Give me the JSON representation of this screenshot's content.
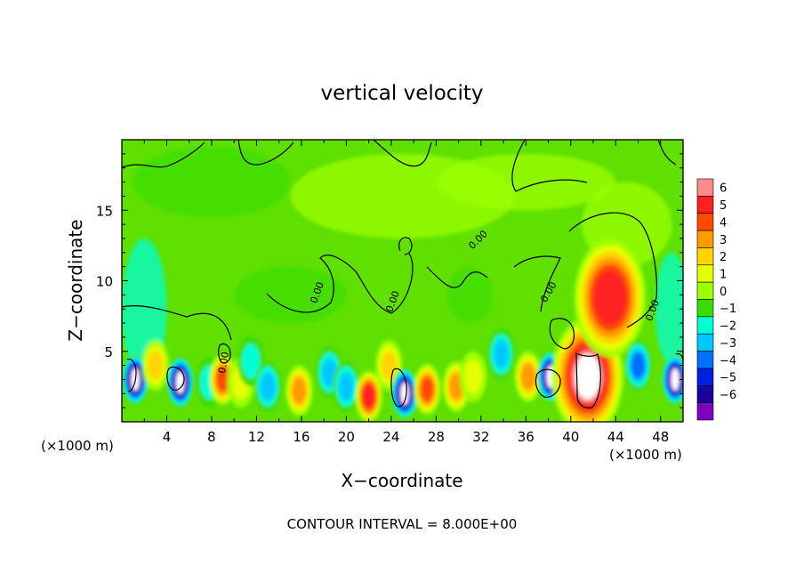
{
  "chart_data": {
    "type": "heatmap",
    "title": "vertical velocity",
    "xlabel": "X−coordinate",
    "ylabel": "Z−coordinate",
    "x_unit_left": "(×1000 m)",
    "x_unit_right": "(×1000 m)",
    "footer": "CONTOUR INTERVAL = 8.000E+00",
    "contour_label": "0.00",
    "xlim": [
      0,
      50
    ],
    "ylim": [
      0,
      20
    ],
    "x_ticks": [
      4,
      8,
      12,
      16,
      20,
      24,
      28,
      32,
      36,
      40,
      44,
      48
    ],
    "y_ticks": [
      5,
      10,
      15
    ],
    "colorbar": {
      "levels": [
        6,
        5,
        4,
        3,
        2,
        1,
        0,
        -1,
        -2,
        -3,
        -4,
        -5,
        -6
      ],
      "colors": [
        "#ff8a8a",
        "#ff2020",
        "#ff4a00",
        "#ff9a00",
        "#ffd400",
        "#e6ff00",
        "#9cff00",
        "#3ddc00",
        "#00ffd5",
        "#00c8ff",
        "#0070ff",
        "#0020e0",
        "#1a00a0",
        "#8000c0"
      ]
    },
    "features": [
      {
        "x": 1.2,
        "z": 3.0,
        "w": -6.5
      },
      {
        "x": 3.0,
        "z": 4.0,
        "w": 3.0
      },
      {
        "x": 5.2,
        "z": 2.8,
        "w": -6.5
      },
      {
        "x": 7.8,
        "z": 2.8,
        "w": -1.5
      },
      {
        "x": 9.0,
        "z": 3.0,
        "w": 5.0
      },
      {
        "x": 10.6,
        "z": 2.8,
        "w": 2.0
      },
      {
        "x": 11.5,
        "z": 4.3,
        "w": -2.0
      },
      {
        "x": 13.0,
        "z": 2.5,
        "w": -2.5
      },
      {
        "x": 15.8,
        "z": 2.2,
        "w": 4.0
      },
      {
        "x": 18.5,
        "z": 3.5,
        "w": -3.0
      },
      {
        "x": 20.0,
        "z": 2.5,
        "w": -3.0
      },
      {
        "x": 22.0,
        "z": 1.8,
        "w": 5.5
      },
      {
        "x": 23.8,
        "z": 4.0,
        "w": 3.0
      },
      {
        "x": 25.2,
        "z": 2.0,
        "w": -6.5
      },
      {
        "x": 27.2,
        "z": 2.3,
        "w": 5.0
      },
      {
        "x": 29.8,
        "z": 2.5,
        "w": 3.5
      },
      {
        "x": 31.3,
        "z": 3.2,
        "w": 2.0
      },
      {
        "x": 33.8,
        "z": 4.8,
        "w": -2.5
      },
      {
        "x": 36.2,
        "z": 3.2,
        "w": 4.0
      },
      {
        "x": 38.2,
        "z": 3.2,
        "w": -6.5
      },
      {
        "x": 39.5,
        "z": 2.8,
        "w": 3.0
      },
      {
        "x": 41.5,
        "z": 3.2,
        "w": 6.8
      },
      {
        "x": 43.5,
        "z": 8.8,
        "w": 5.5
      },
      {
        "x": 46.0,
        "z": 4.0,
        "w": -3.5
      },
      {
        "x": 49.3,
        "z": 3.0,
        "w": -6.5
      }
    ]
  }
}
